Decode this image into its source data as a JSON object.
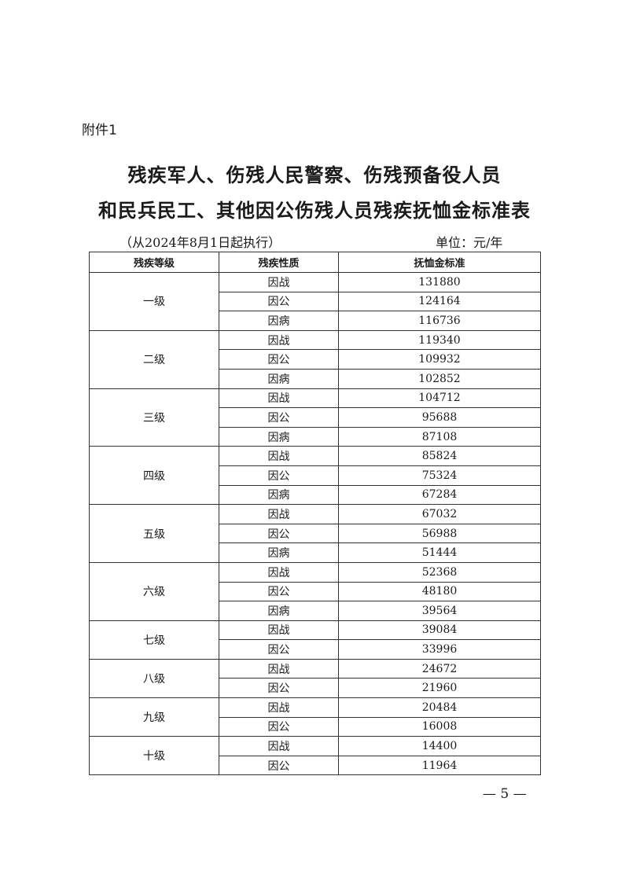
{
  "attachment": "附件1",
  "title_line1": "残疾军人、伤残人民警察、伤残预备役人员",
  "title_line2": "和民兵民工、其他因公伤残人员残疾抚恤金标准表",
  "effective": "（从2024年8月1日起执行）",
  "unit": "单位：元/年",
  "headers": [
    "残疾等级",
    "残疾性质",
    "抚恤金标准"
  ],
  "groups": [
    {
      "grade": "一级",
      "rows": [
        [
          "因战",
          "131880"
        ],
        [
          "因公",
          "124164"
        ],
        [
          "因病",
          "116736"
        ]
      ]
    },
    {
      "grade": "二级",
      "rows": [
        [
          "因战",
          "119340"
        ],
        [
          "因公",
          "109932"
        ],
        [
          "因病",
          "102852"
        ]
      ]
    },
    {
      "grade": "三级",
      "rows": [
        [
          "因战",
          "104712"
        ],
        [
          "因公",
          "95688"
        ],
        [
          "因病",
          "87108"
        ]
      ]
    },
    {
      "grade": "四级",
      "rows": [
        [
          "因战",
          "85824"
        ],
        [
          "因公",
          "75324"
        ],
        [
          "因病",
          "67284"
        ]
      ]
    },
    {
      "grade": "五级",
      "rows": [
        [
          "因战",
          "67032"
        ],
        [
          "因公",
          "56988"
        ],
        [
          "因病",
          "51444"
        ]
      ]
    },
    {
      "grade": "六级",
      "rows": [
        [
          "因战",
          "52368"
        ],
        [
          "因公",
          "48180"
        ],
        [
          "因病",
          "39564"
        ]
      ]
    },
    {
      "grade": "七级",
      "rows": [
        [
          "因战",
          "39084"
        ],
        [
          "因公",
          "33996"
        ]
      ]
    },
    {
      "grade": "八级",
      "rows": [
        [
          "因战",
          "24672"
        ],
        [
          "因公",
          "21960"
        ]
      ]
    },
    {
      "grade": "九级",
      "rows": [
        [
          "因战",
          "20484"
        ],
        [
          "因公",
          "16008"
        ]
      ]
    },
    {
      "grade": "十级",
      "rows": [
        [
          "因战",
          "14400"
        ],
        [
          "因公",
          "11964"
        ]
      ]
    }
  ],
  "page_number": "— 5 —"
}
